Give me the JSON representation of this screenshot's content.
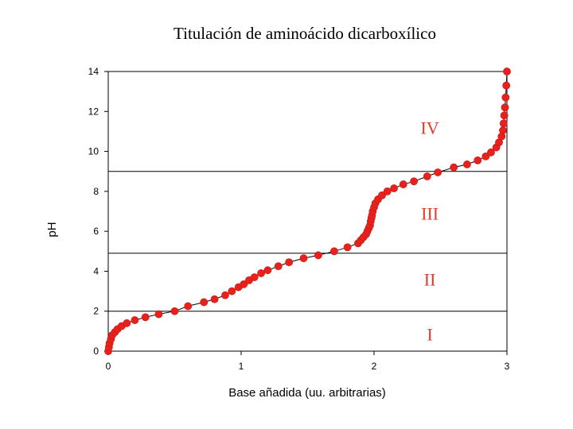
{
  "chart_data": {
    "type": "scatter",
    "title": "Titulación de aminoácido dicarboxílico",
    "xlabel": "Base añadida (uu. arbitrarias)",
    "ylabel": "pH",
    "xlim": [
      0,
      3
    ],
    "ylim": [
      0,
      14
    ],
    "x_ticks": [
      "0",
      "1",
      "2",
      "3"
    ],
    "y_ticks": [
      "0",
      "2",
      "4",
      "6",
      "8",
      "10",
      "12",
      "14"
    ],
    "grid": false,
    "legend": "none",
    "region_boundaries_y": [
      2.0,
      4.9,
      9.0
    ],
    "regions": [
      {
        "label": "I",
        "x": 2.42,
        "y": 0.85
      },
      {
        "label": "II",
        "x": 2.42,
        "y": 3.6
      },
      {
        "label": "III",
        "x": 2.42,
        "y": 6.9
      },
      {
        "label": "IV",
        "x": 2.42,
        "y": 11.2
      }
    ],
    "series": [
      {
        "color": "#e8211d",
        "x": [
          0.0,
          0.005,
          0.01,
          0.02,
          0.03,
          0.05,
          0.07,
          0.1,
          0.14,
          0.2,
          0.28,
          0.38,
          0.5,
          0.6,
          0.72,
          0.8,
          0.88,
          0.93,
          0.98,
          1.02,
          1.06,
          1.1,
          1.15,
          1.2,
          1.28,
          1.36,
          1.47,
          1.58,
          1.7,
          1.8,
          1.88,
          1.9,
          1.92,
          1.94,
          1.95,
          1.96,
          1.97,
          1.975,
          1.98,
          1.985,
          1.99,
          2.0,
          2.01,
          2.03,
          2.06,
          2.1,
          2.15,
          2.22,
          2.3,
          2.4,
          2.48,
          2.6,
          2.7,
          2.78,
          2.84,
          2.88,
          2.92,
          2.94,
          2.96,
          2.97,
          2.975,
          2.98,
          2.985,
          2.99,
          2.995,
          3.0
        ],
        "y": [
          0.0,
          0.2,
          0.4,
          0.6,
          0.8,
          0.95,
          1.1,
          1.25,
          1.4,
          1.55,
          1.7,
          1.85,
          2.0,
          2.25,
          2.45,
          2.6,
          2.8,
          3.0,
          3.2,
          3.35,
          3.55,
          3.7,
          3.9,
          4.05,
          4.25,
          4.45,
          4.65,
          4.8,
          5.0,
          5.2,
          5.4,
          5.55,
          5.7,
          5.85,
          6.0,
          6.15,
          6.3,
          6.5,
          6.65,
          6.8,
          7.0,
          7.2,
          7.4,
          7.6,
          7.8,
          8.0,
          8.15,
          8.35,
          8.5,
          8.75,
          8.95,
          9.2,
          9.35,
          9.55,
          9.75,
          9.95,
          10.2,
          10.45,
          10.75,
          11.05,
          11.4,
          11.8,
          12.2,
          12.7,
          13.3,
          14.0
        ]
      }
    ]
  }
}
